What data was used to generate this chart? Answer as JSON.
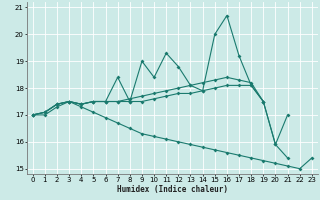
{
  "title": "",
  "xlabel": "Humidex (Indice chaleur)",
  "bg_color": "#cceae7",
  "grid_color": "#ffffff",
  "line_color": "#1a7a6e",
  "x_values": [
    0,
    1,
    2,
    3,
    4,
    5,
    6,
    7,
    8,
    9,
    10,
    11,
    12,
    13,
    14,
    15,
    16,
    17,
    18,
    19,
    20,
    21,
    22,
    23
  ],
  "series1": [
    17.0,
    17.1,
    17.4,
    17.5,
    17.4,
    17.5,
    17.5,
    18.4,
    17.5,
    19.0,
    18.4,
    19.3,
    18.8,
    18.1,
    17.9,
    20.0,
    20.7,
    19.2,
    18.1,
    17.5,
    15.9,
    17.0,
    null,
    null
  ],
  "series2": [
    17.0,
    17.1,
    17.4,
    17.5,
    17.4,
    17.5,
    17.5,
    17.5,
    17.6,
    17.7,
    17.8,
    17.9,
    18.0,
    18.1,
    18.2,
    18.3,
    18.4,
    18.3,
    18.2,
    17.5,
    null,
    null,
    null,
    null
  ],
  "series3": [
    17.0,
    17.1,
    17.4,
    17.5,
    17.4,
    17.5,
    17.5,
    17.5,
    17.5,
    17.5,
    17.6,
    17.7,
    17.8,
    17.8,
    17.9,
    18.0,
    18.1,
    18.1,
    18.1,
    17.5,
    15.9,
    15.4,
    null,
    null
  ],
  "series4": [
    17.0,
    17.0,
    17.3,
    17.5,
    17.3,
    17.1,
    16.9,
    16.7,
    16.5,
    16.3,
    16.2,
    16.1,
    16.0,
    15.9,
    15.8,
    15.7,
    15.6,
    15.5,
    15.4,
    15.3,
    15.2,
    15.1,
    15.0,
    15.4
  ],
  "ylim": [
    14.8,
    21.2
  ],
  "xlim": [
    -0.5,
    23.5
  ],
  "yticks": [
    15,
    16,
    17,
    18,
    19,
    20,
    21
  ],
  "xticks": [
    0,
    1,
    2,
    3,
    4,
    5,
    6,
    7,
    8,
    9,
    10,
    11,
    12,
    13,
    14,
    15,
    16,
    17,
    18,
    19,
    20,
    21,
    22,
    23
  ]
}
